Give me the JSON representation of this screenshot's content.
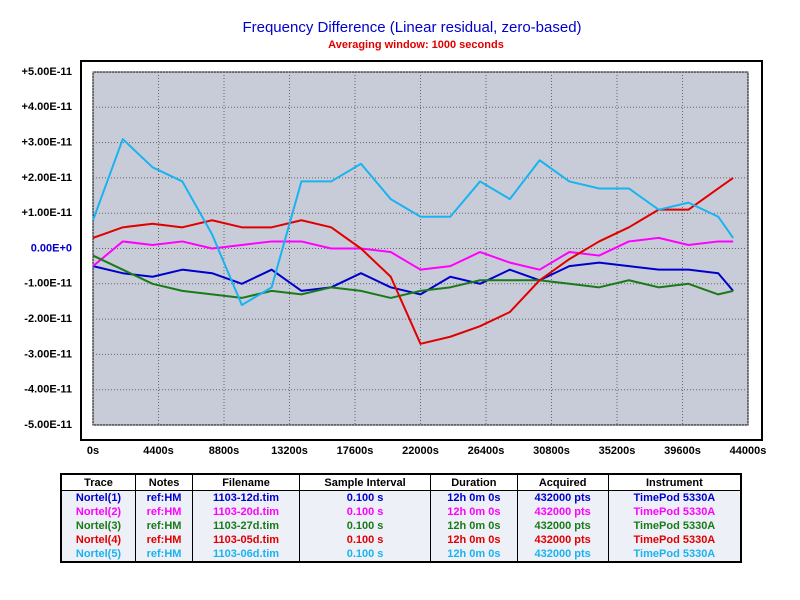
{
  "chart_data": {
    "type": "line",
    "title": "Frequency Difference  (Linear residual, zero-based)",
    "subtitle": "Averaging window: 1000 seconds",
    "x": [
      0,
      2000,
      4000,
      6000,
      8000,
      10000,
      12000,
      14000,
      16000,
      18000,
      20000,
      22000,
      24000,
      26000,
      28000,
      30000,
      32000,
      34000,
      36000,
      38000,
      40000,
      42000,
      43000
    ],
    "xlim": [
      0,
      44000
    ],
    "xticks": [
      {
        "value": 0,
        "label": "0s"
      },
      {
        "value": 4400,
        "label": "4400s"
      },
      {
        "value": 8800,
        "label": "8800s"
      },
      {
        "value": 13200,
        "label": "13200s"
      },
      {
        "value": 17600,
        "label": "17600s"
      },
      {
        "value": 22000,
        "label": "22000s"
      },
      {
        "value": 26400,
        "label": "26400s"
      },
      {
        "value": 30800,
        "label": "30800s"
      },
      {
        "value": 35200,
        "label": "35200s"
      },
      {
        "value": 39600,
        "label": "39600s"
      },
      {
        "value": 44000,
        "label": "44000s"
      }
    ],
    "ylim": [
      -5e-11,
      5e-11
    ],
    "yticks": [
      {
        "value": 5e-11,
        "label": "+5.00E-11"
      },
      {
        "value": 4e-11,
        "label": "+4.00E-11"
      },
      {
        "value": 3e-11,
        "label": "+3.00E-11"
      },
      {
        "value": 2e-11,
        "label": "+2.00E-11"
      },
      {
        "value": 1e-11,
        "label": "+1.00E-11"
      },
      {
        "value": 0,
        "label": "0.00E+0"
      },
      {
        "value": -1e-11,
        "label": "-1.00E-11"
      },
      {
        "value": -2e-11,
        "label": "-2.00E-11"
      },
      {
        "value": -3e-11,
        "label": "-3.00E-11"
      },
      {
        "value": -4e-11,
        "label": "-4.00E-11"
      },
      {
        "value": -5e-11,
        "label": "-5.00E-11"
      }
    ],
    "grid": true,
    "series": [
      {
        "color": "#0000cc",
        "values": [
          -5e-12,
          -7e-12,
          -8e-12,
          -6e-12,
          -7e-12,
          -1e-11,
          -6e-12,
          -1.2e-11,
          -1.1e-11,
          -7e-12,
          -1.1e-11,
          -1.3e-11,
          -8e-12,
          -1e-11,
          -6e-12,
          -9e-12,
          -5e-12,
          -4e-12,
          -5e-12,
          -6e-12,
          -6e-12,
          -7e-12,
          -1.2e-11
        ]
      },
      {
        "color": "#ff00ff",
        "values": [
          -5e-12,
          2e-12,
          1e-12,
          2e-12,
          0.0,
          1e-12,
          2e-12,
          2e-12,
          0.0,
          0.0,
          -1e-12,
          -6e-12,
          -5e-12,
          -1e-12,
          -4e-12,
          -6e-12,
          -1e-12,
          -2e-12,
          2e-12,
          3e-12,
          1e-12,
          2e-12,
          2e-12
        ]
      },
      {
        "color": "#1a7a1a",
        "values": [
          -2e-12,
          -6e-12,
          -1e-11,
          -1.2e-11,
          -1.3e-11,
          -1.4e-11,
          -1.2e-11,
          -1.3e-11,
          -1.1e-11,
          -1.2e-11,
          -1.4e-11,
          -1.2e-11,
          -1.1e-11,
          -9e-12,
          -9e-12,
          -9e-12,
          -1e-11,
          -1.1e-11,
          -9e-12,
          -1.1e-11,
          -1e-11,
          -1.3e-11,
          -1.2e-11
        ]
      },
      {
        "color": "#e00000",
        "values": [
          3e-12,
          6e-12,
          7e-12,
          6e-12,
          8e-12,
          6e-12,
          6e-12,
          8e-12,
          6e-12,
          0.0,
          -8e-12,
          -2.7e-11,
          -2.5e-11,
          -2.2e-11,
          -1.8e-11,
          -9e-12,
          -3e-12,
          2e-12,
          6e-12,
          1.1e-11,
          1.1e-11,
          1.7e-11,
          2e-11
        ]
      },
      {
        "color": "#1ab3f0",
        "values": [
          8e-12,
          3.1e-11,
          2.3e-11,
          1.9e-11,
          4e-12,
          -1.6e-11,
          -1.1e-11,
          1.9e-11,
          1.9e-11,
          2.4e-11,
          1.4e-11,
          9e-12,
          9e-12,
          1.9e-11,
          1.4e-11,
          2.5e-11,
          1.9e-11,
          1.7e-11,
          1.7e-11,
          1.1e-11,
          1.3e-11,
          9e-12,
          3e-12
        ]
      }
    ]
  },
  "table": {
    "columns": [
      "Trace",
      "Notes",
      "Filename",
      "Sample Interval",
      "Duration",
      "Acquired",
      "Instrument"
    ],
    "rows": [
      [
        "Nortel(1)",
        "ref:HM",
        "1103-12d.tim",
        "0.100 s",
        "12h 0m 0s",
        "432000 pts",
        "TimePod 5330A"
      ],
      [
        "Nortel(2)",
        "ref:HM",
        "1103-20d.tim",
        "0.100 s",
        "12h 0m 0s",
        "432000 pts",
        "TimePod 5330A"
      ],
      [
        "Nortel(3)",
        "ref:HM",
        "1103-27d.tim",
        "0.100 s",
        "12h 0m 0s",
        "432000 pts",
        "TimePod 5330A"
      ],
      [
        "Nortel(4)",
        "ref:HM",
        "1103-05d.tim",
        "0.100 s",
        "12h 0m 0s",
        "432000 pts",
        "TimePod 5330A"
      ],
      [
        "Nortel(5)",
        "ref:HM",
        "1103-06d.tim",
        "0.100 s",
        "12h 0m 0s",
        "432000 pts",
        "TimePod 5330A"
      ]
    ]
  }
}
